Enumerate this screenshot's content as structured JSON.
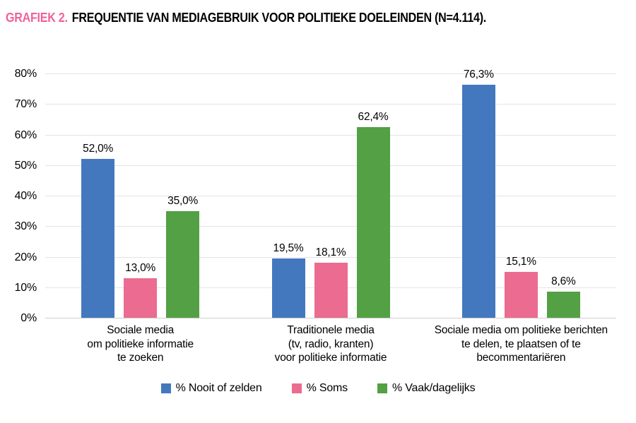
{
  "title": {
    "prefix": "GRAFIEK 2.",
    "text": "FREQUENTIE VAN MEDIAGEBRUIK VOOR POLITIEKE DOELEINDEN (N=4.114)."
  },
  "colors": {
    "title_prefix": "#F0629A",
    "gridline": "#E4E4E4",
    "axis_line": "#CFCFCF",
    "text": "#000000"
  },
  "chart_data": {
    "type": "bar",
    "title": "FREQUENTIE VAN MEDIAGEBRUIK VOOR POLITIEKE DOELEINDEN (N=4.114).",
    "categories": [
      [
        "Sociale media",
        "om politieke informatie",
        "te zoeken"
      ],
      [
        "Traditionele media",
        "(tv, radio, kranten)",
        "voor politieke informatie"
      ],
      [
        "Sociale media om politieke berichten",
        "te delen, te plaatsen of te",
        "becommentariëren"
      ]
    ],
    "series": [
      {
        "name": "% Nooit of zelden",
        "slug": "nooit-of-zelden",
        "color": "#4478BE",
        "values": [
          52.0,
          19.5,
          76.3
        ],
        "labels": [
          "52,0%",
          "19,5%",
          "76,3%"
        ]
      },
      {
        "name": "% Soms",
        "slug": "soms",
        "color": "#EB6C90",
        "values": [
          13.0,
          18.1,
          15.1
        ],
        "labels": [
          "13,0%",
          "18,1%",
          "15,1%"
        ]
      },
      {
        "name": "% Vaak/dagelijks",
        "slug": "vaak-dagelijks",
        "color": "#54A044",
        "values": [
          35.0,
          62.4,
          8.6
        ],
        "labels": [
          "35,0%",
          "62,4%",
          "8,6%"
        ]
      }
    ],
    "ylim": [
      0,
      80
    ],
    "yticks": [
      0,
      10,
      20,
      30,
      40,
      50,
      60,
      70,
      80
    ],
    "ytick_labels": [
      "0%",
      "10%",
      "20%",
      "30%",
      "40%",
      "50%",
      "60%",
      "70%",
      "80%"
    ],
    "grid": true,
    "legend_position": "bottom",
    "xlabel": "",
    "ylabel": ""
  }
}
